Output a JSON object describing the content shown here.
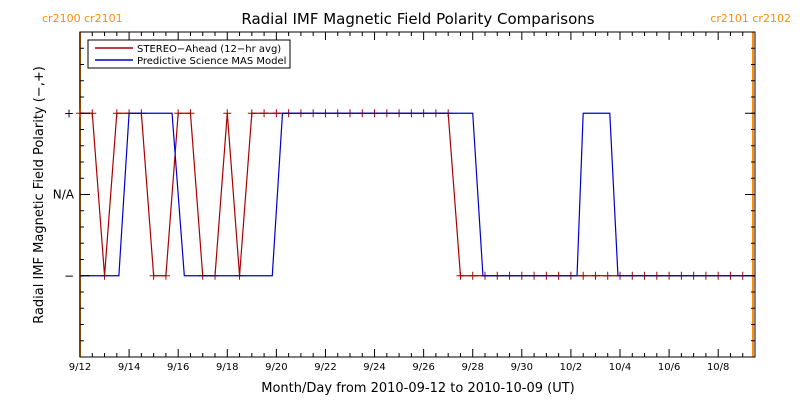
{
  "chart_data": {
    "type": "line",
    "title": "Radial IMF Magnetic Field Polarity Comparisons",
    "xlabel": "Month/Day from 2010-09-12 to 2010-10-09 (UT)",
    "ylabel": "Radial IMF Magnetic Field Polarity (−,+)",
    "x_tick_labels": [
      "9/12",
      "9/14",
      "9/16",
      "9/18",
      "9/20",
      "9/22",
      "9/24",
      "9/26",
      "9/28",
      "9/30",
      "10/2",
      "10/4",
      "10/6",
      "10/8"
    ],
    "xlim": [
      "2010-09-12T00:00",
      "2010-10-09T12:00"
    ],
    "y_levels": [
      {
        "label": "+",
        "value": 1
      },
      {
        "label": "N/A",
        "value": 0
      },
      {
        "label": "−",
        "value": -1
      }
    ],
    "ylim": [
      -2,
      2
    ],
    "grid": false,
    "legend_position": "top-left",
    "carrington_markers": [
      {
        "time": "2010-09-12T00:00",
        "label": "cr2100 cr2101",
        "color": "#ff8c00"
      },
      {
        "time": "2010-10-09T10:00",
        "label": "cr2101 cr2102",
        "color": "#ff8c00"
      }
    ],
    "series": [
      {
        "name": "STEREO−Ahead (12−hr avg)",
        "color": "#aa0000",
        "markers": true,
        "points": [
          [
            "2010-09-12T00:00",
            1
          ],
          [
            "2010-09-12T12:00",
            1
          ],
          [
            "2010-09-13T00:00",
            -1
          ],
          [
            "2010-09-13T12:00",
            1
          ],
          [
            "2010-09-14T00:00",
            1
          ],
          [
            "2010-09-14T12:00",
            1
          ],
          [
            "2010-09-15T00:00",
            -1
          ],
          [
            "2010-09-15T12:00",
            -1
          ],
          [
            "2010-09-16T00:00",
            1
          ],
          [
            "2010-09-16T12:00",
            1
          ],
          [
            "2010-09-17T00:00",
            -1
          ],
          [
            "2010-09-17T12:00",
            -1
          ],
          [
            "2010-09-18T00:00",
            1
          ],
          [
            "2010-09-18T12:00",
            -1
          ],
          [
            "2010-09-19T00:00",
            1
          ],
          [
            "2010-09-19T12:00",
            1
          ],
          [
            "2010-09-20T00:00",
            1
          ],
          [
            "2010-09-20T12:00",
            1
          ],
          [
            "2010-09-21T00:00",
            1
          ],
          [
            "2010-09-21T12:00",
            1
          ],
          [
            "2010-09-22T00:00",
            1
          ],
          [
            "2010-09-22T12:00",
            1
          ],
          [
            "2010-09-23T00:00",
            1
          ],
          [
            "2010-09-23T12:00",
            1
          ],
          [
            "2010-09-24T00:00",
            1
          ],
          [
            "2010-09-24T12:00",
            1
          ],
          [
            "2010-09-25T00:00",
            1
          ],
          [
            "2010-09-25T12:00",
            1
          ],
          [
            "2010-09-26T00:00",
            1
          ],
          [
            "2010-09-26T12:00",
            1
          ],
          [
            "2010-09-27T00:00",
            1
          ],
          [
            "2010-09-27T12:00",
            -1
          ],
          [
            "2010-09-28T00:00",
            -1
          ],
          [
            "2010-09-28T12:00",
            -1
          ],
          [
            "2010-09-29T00:00",
            -1
          ],
          [
            "2010-09-29T12:00",
            -1
          ],
          [
            "2010-09-30T00:00",
            -1
          ],
          [
            "2010-09-30T12:00",
            -1
          ],
          [
            "2010-10-01T00:00",
            -1
          ],
          [
            "2010-10-01T12:00",
            -1
          ],
          [
            "2010-10-02T00:00",
            -1
          ],
          [
            "2010-10-02T12:00",
            -1
          ],
          [
            "2010-10-03T00:00",
            -1
          ],
          [
            "2010-10-03T12:00",
            -1
          ],
          [
            "2010-10-04T00:00",
            -1
          ],
          [
            "2010-10-04T12:00",
            -1
          ],
          [
            "2010-10-05T00:00",
            -1
          ],
          [
            "2010-10-05T12:00",
            -1
          ],
          [
            "2010-10-06T00:00",
            -1
          ],
          [
            "2010-10-06T12:00",
            -1
          ],
          [
            "2010-10-07T00:00",
            -1
          ],
          [
            "2010-10-07T12:00",
            -1
          ],
          [
            "2010-10-08T00:00",
            -1
          ],
          [
            "2010-10-08T12:00",
            -1
          ],
          [
            "2010-10-09T00:00",
            -1
          ]
        ]
      },
      {
        "name": "Predictive Science MAS Model",
        "color": "#0000cc",
        "markers": false,
        "points": [
          [
            "2010-09-12T00:00",
            -1
          ],
          [
            "2010-09-13T14:00",
            -1
          ],
          [
            "2010-09-14T00:00",
            1
          ],
          [
            "2010-09-15T18:00",
            1
          ],
          [
            "2010-09-16T06:00",
            -1
          ],
          [
            "2010-09-19T20:00",
            -1
          ],
          [
            "2010-09-20T06:00",
            1
          ],
          [
            "2010-09-28T00:00",
            1
          ],
          [
            "2010-09-28T10:00",
            -1
          ],
          [
            "2010-10-02T06:00",
            -1
          ],
          [
            "2010-10-02T12:00",
            1
          ],
          [
            "2010-10-03T14:00",
            1
          ],
          [
            "2010-10-03T22:00",
            -1
          ],
          [
            "2010-10-09T12:00",
            -1
          ]
        ]
      }
    ]
  }
}
